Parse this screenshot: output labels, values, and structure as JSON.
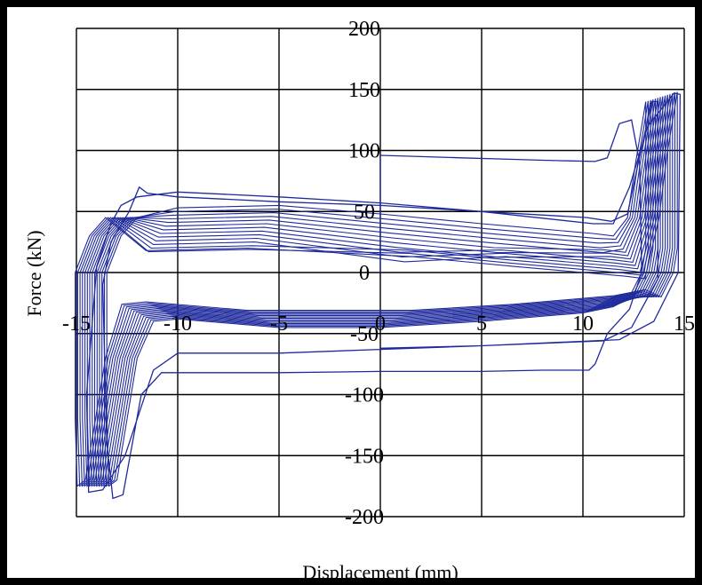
{
  "chart_data": {
    "type": "line",
    "title": "",
    "xlabel": "Displacement (mm)",
    "ylabel": "Force (kN)",
    "xlim": [
      -15,
      15
    ],
    "ylim": [
      -200,
      200
    ],
    "x_ticks": [
      "-15",
      "-10",
      "-5",
      "0",
      "5",
      "10",
      "15"
    ],
    "x_tick_values": [
      -15,
      -10,
      -5,
      0,
      5,
      10,
      15
    ],
    "y_ticks": [
      "200",
      "150",
      "100",
      "50",
      "0",
      "-50",
      "-100",
      "-150",
      "-200"
    ],
    "y_tick_values": [
      200,
      150,
      100,
      50,
      0,
      -50,
      -100,
      -150,
      -200
    ],
    "grid": true,
    "legend": "none",
    "colors": {
      "series": "#1f2a9c",
      "grid": "#000000",
      "frame": "#000000"
    },
    "series": [
      {
        "points": [
          [
            0,
            0
          ],
          [
            0,
            96
          ],
          [
            2,
            95
          ],
          [
            4,
            94
          ],
          [
            6,
            93
          ],
          [
            8,
            92
          ],
          [
            10.6,
            91
          ],
          [
            11.2,
            94
          ],
          [
            11.8,
            122
          ],
          [
            12.4,
            125
          ],
          [
            12.8,
            90
          ],
          [
            12.9,
            0
          ],
          [
            12.3,
            -30
          ],
          [
            11.2,
            -50
          ],
          [
            10.6,
            -75
          ],
          [
            10.3,
            -80
          ],
          [
            8,
            -80
          ],
          [
            5,
            -81
          ],
          [
            0,
            -81
          ],
          [
            -5,
            -82
          ],
          [
            -10,
            -82
          ],
          [
            -10.8,
            -82
          ],
          [
            -11.8,
            -100
          ],
          [
            -12.7,
            -182
          ],
          [
            -13.2,
            -185
          ],
          [
            -13.5,
            -140
          ],
          [
            -13.7,
            -10
          ],
          [
            -13.3,
            25
          ],
          [
            -12.4,
            50
          ],
          [
            -11.9,
            70
          ],
          [
            -11.5,
            65
          ],
          [
            -10,
            62
          ],
          [
            -5,
            58
          ],
          [
            0,
            55
          ],
          [
            5,
            50
          ],
          [
            10.2,
            45
          ],
          [
            11.4,
            42
          ],
          [
            12.2,
            48
          ],
          [
            12.8,
            95
          ],
          [
            13.4,
            140
          ],
          [
            13.7,
            140
          ],
          [
            13.7,
            -5
          ],
          [
            12.4,
            -45
          ],
          [
            11,
            -56
          ],
          [
            5,
            -60
          ],
          [
            0,
            -63
          ],
          [
            -5,
            -66
          ],
          [
            -10,
            -66
          ],
          [
            -11.2,
            -80
          ],
          [
            -12.6,
            -150
          ],
          [
            -13.7,
            -178
          ],
          [
            -14.4,
            -180
          ],
          [
            -14.5,
            -100
          ],
          [
            -14,
            5
          ],
          [
            -13.3,
            40
          ],
          [
            -12.8,
            55
          ],
          [
            -12,
            62
          ],
          [
            -10,
            66
          ],
          [
            -5,
            62
          ],
          [
            0,
            57
          ],
          [
            5,
            50
          ],
          [
            10.5,
            40
          ],
          [
            11.5,
            40
          ],
          [
            12.3,
            70
          ],
          [
            13.2,
            120
          ],
          [
            14.5,
            147
          ],
          [
            14.8,
            146
          ],
          [
            14.7,
            0
          ],
          [
            13.5,
            -40
          ],
          [
            11.8,
            -55
          ],
          [
            5,
            -60
          ],
          [
            0,
            -62
          ]
        ]
      }
    ],
    "loop_family": {
      "count": 14,
      "upper_branch": [
        [
          -13.5,
          0
        ],
        [
          -12.8,
          30
        ],
        [
          -12,
          45
        ],
        [
          -10,
          53
        ],
        [
          -5,
          55
        ],
        [
          0,
          48
        ],
        [
          5,
          40
        ],
        [
          10.5,
          32
        ],
        [
          11.5,
          30
        ],
        [
          12.2,
          45
        ],
        [
          12.6,
          90
        ],
        [
          13.0,
          130
        ],
        [
          13.1,
          140
        ]
      ],
      "lower_branch": [
        [
          13.1,
          20
        ],
        [
          12.9,
          0
        ],
        [
          12.3,
          -20
        ],
        [
          11.5,
          -28
        ],
        [
          10,
          -33
        ],
        [
          5,
          -40
        ],
        [
          0,
          -45
        ],
        [
          -5,
          -45
        ],
        [
          -10,
          -38
        ],
        [
          -11.2,
          -40
        ],
        [
          -12,
          -70
        ],
        [
          -12.6,
          -130
        ],
        [
          -13,
          -170
        ],
        [
          -13.4,
          -175
        ],
        [
          -13.5,
          -120
        ],
        [
          -13.5,
          0
        ]
      ],
      "x_shift_per_loop": 0.12,
      "y_spread_upper": 35,
      "y_spread_lower": 40,
      "peak_growth": 1
    }
  }
}
